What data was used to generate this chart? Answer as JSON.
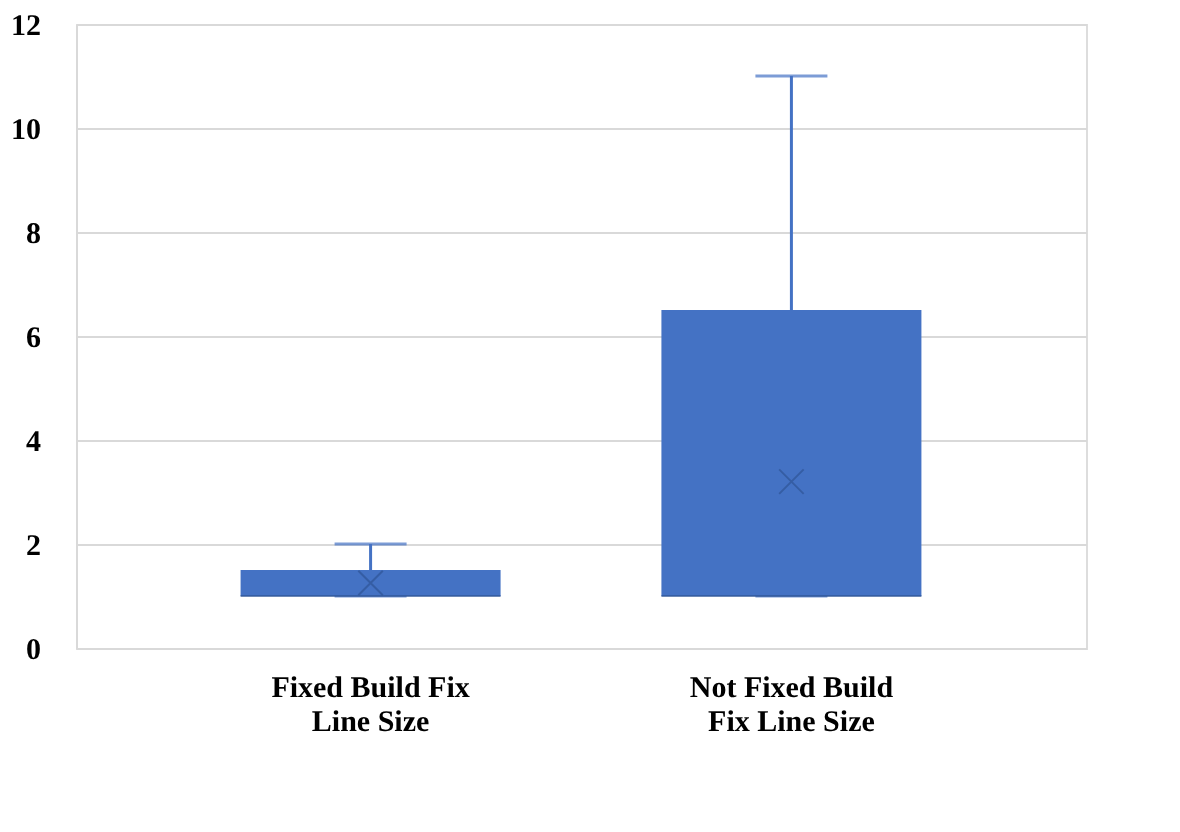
{
  "chart_data": {
    "type": "box",
    "categories": [
      "Fixed Build Fix\nLine Size",
      "Not Fixed Build\nFix Line Size"
    ],
    "boxes": [
      {
        "low": 1,
        "q1": 1,
        "median": 1,
        "q3": 1.5,
        "high": 2,
        "mean": 1.25
      },
      {
        "low": 1,
        "q1": 1,
        "median": 1,
        "q3": 6.5,
        "high": 11,
        "mean": 3.2
      }
    ],
    "color": "#4472c4",
    "ylim": [
      0,
      12
    ],
    "yticks": [
      0,
      2,
      4,
      6,
      8,
      10,
      12
    ],
    "grid": "y"
  }
}
